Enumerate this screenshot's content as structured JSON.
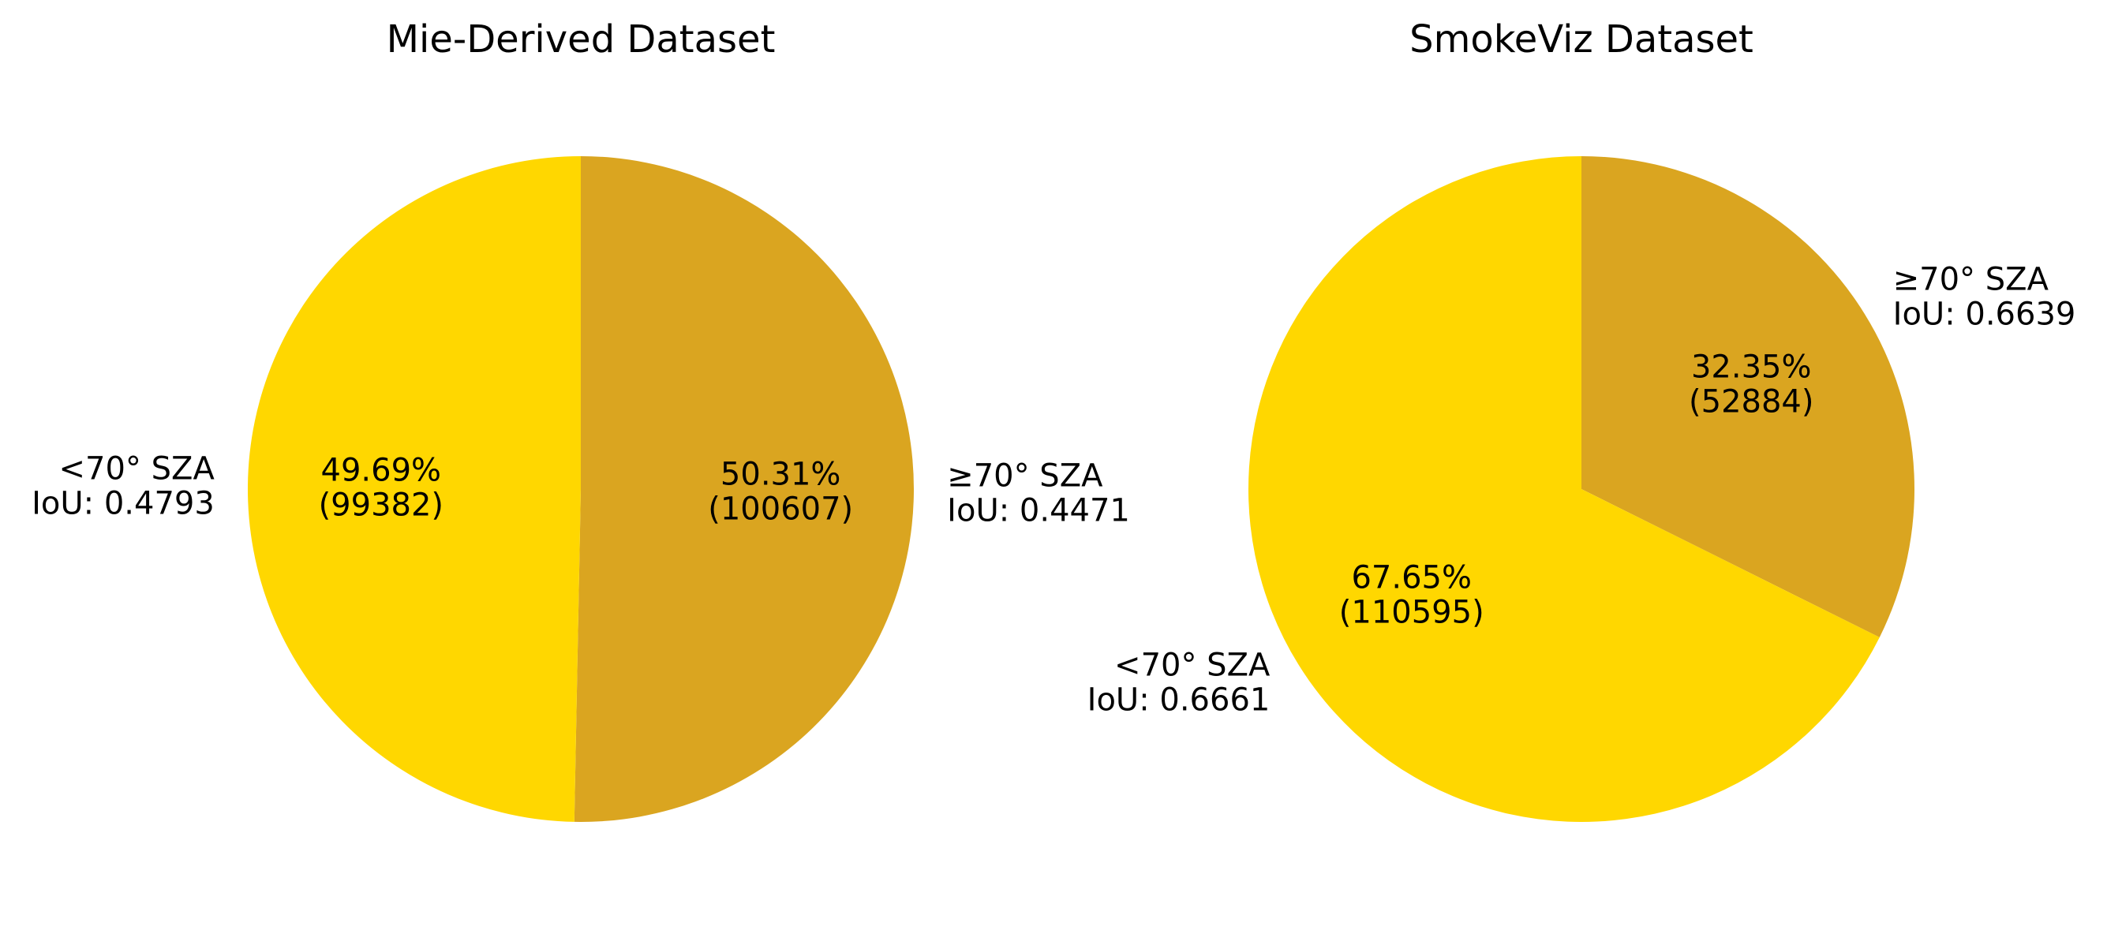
{
  "chart_data": [
    {
      "type": "pie",
      "title": "Mie-Derived Dataset",
      "start_angle_deg": 90,
      "direction": "clockwise",
      "slices": [
        {
          "label": "≥70° SZA",
          "sublabel": "IoU: 0.4471",
          "percent": 50.31,
          "count": 100607,
          "color": "#DAA520"
        },
        {
          "label": "<70° SZA",
          "sublabel": "IoU: 0.4793",
          "percent": 49.69,
          "count": 99382,
          "color": "#FFD700"
        }
      ]
    },
    {
      "type": "pie",
      "title": "SmokeViz Dataset",
      "start_angle_deg": 90,
      "direction": "clockwise",
      "slices": [
        {
          "label": "≥70° SZA",
          "sublabel": "IoU: 0.6639",
          "percent": 32.35,
          "count": 52884,
          "color": "#DAA520"
        },
        {
          "label": "<70° SZA",
          "sublabel": "IoU: 0.6661",
          "percent": 67.65,
          "count": 110595,
          "color": "#FFD700"
        }
      ]
    }
  ]
}
